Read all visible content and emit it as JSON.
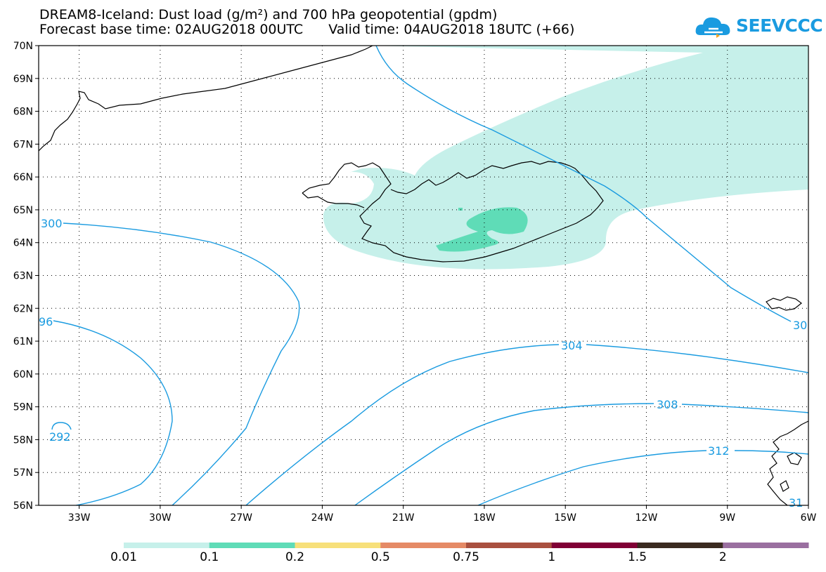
{
  "header": {
    "title_line1": "DREAM8-Iceland: Dust load (g/m²) and 700 hPa geopotential (gpdm)",
    "forecast_base": "Forecast base time: 02AUG2018 00UTC",
    "valid_time": "Valid time: 04AUG2018 18UTC (+66)"
  },
  "logo": {
    "text": "SEEVCCC",
    "color": "#1a9be0"
  },
  "map": {
    "lat_range": [
      56,
      70
    ],
    "lon_range": [
      -34.5,
      -6
    ],
    "lat_labels": [
      "70N",
      "69N",
      "68N",
      "67N",
      "66N",
      "65N",
      "64N",
      "63N",
      "62N",
      "61N",
      "60N",
      "59N",
      "58N",
      "57N",
      "56N"
    ],
    "lon_labels": [
      "33W",
      "30W",
      "27W",
      "24W",
      "21W",
      "18W",
      "15W",
      "12W",
      "9W",
      "6W"
    ],
    "contour_color": "#1a9be0",
    "contour_labels": [
      "300",
      "96",
      "304",
      "308",
      "292",
      "312",
      "30",
      "31"
    ],
    "coastline_color": "#000000"
  },
  "legend": {
    "thresholds": [
      "0.01",
      "0.1",
      "0.2",
      "0.5",
      "0.75",
      "1",
      "1.5",
      "2"
    ],
    "colors": [
      "#c6f0ea",
      "#5fdcb7",
      "#f7e07a",
      "#e58a66",
      "#a9503f",
      "#800035",
      "#3a2a20",
      "#9a6fa0"
    ]
  }
}
